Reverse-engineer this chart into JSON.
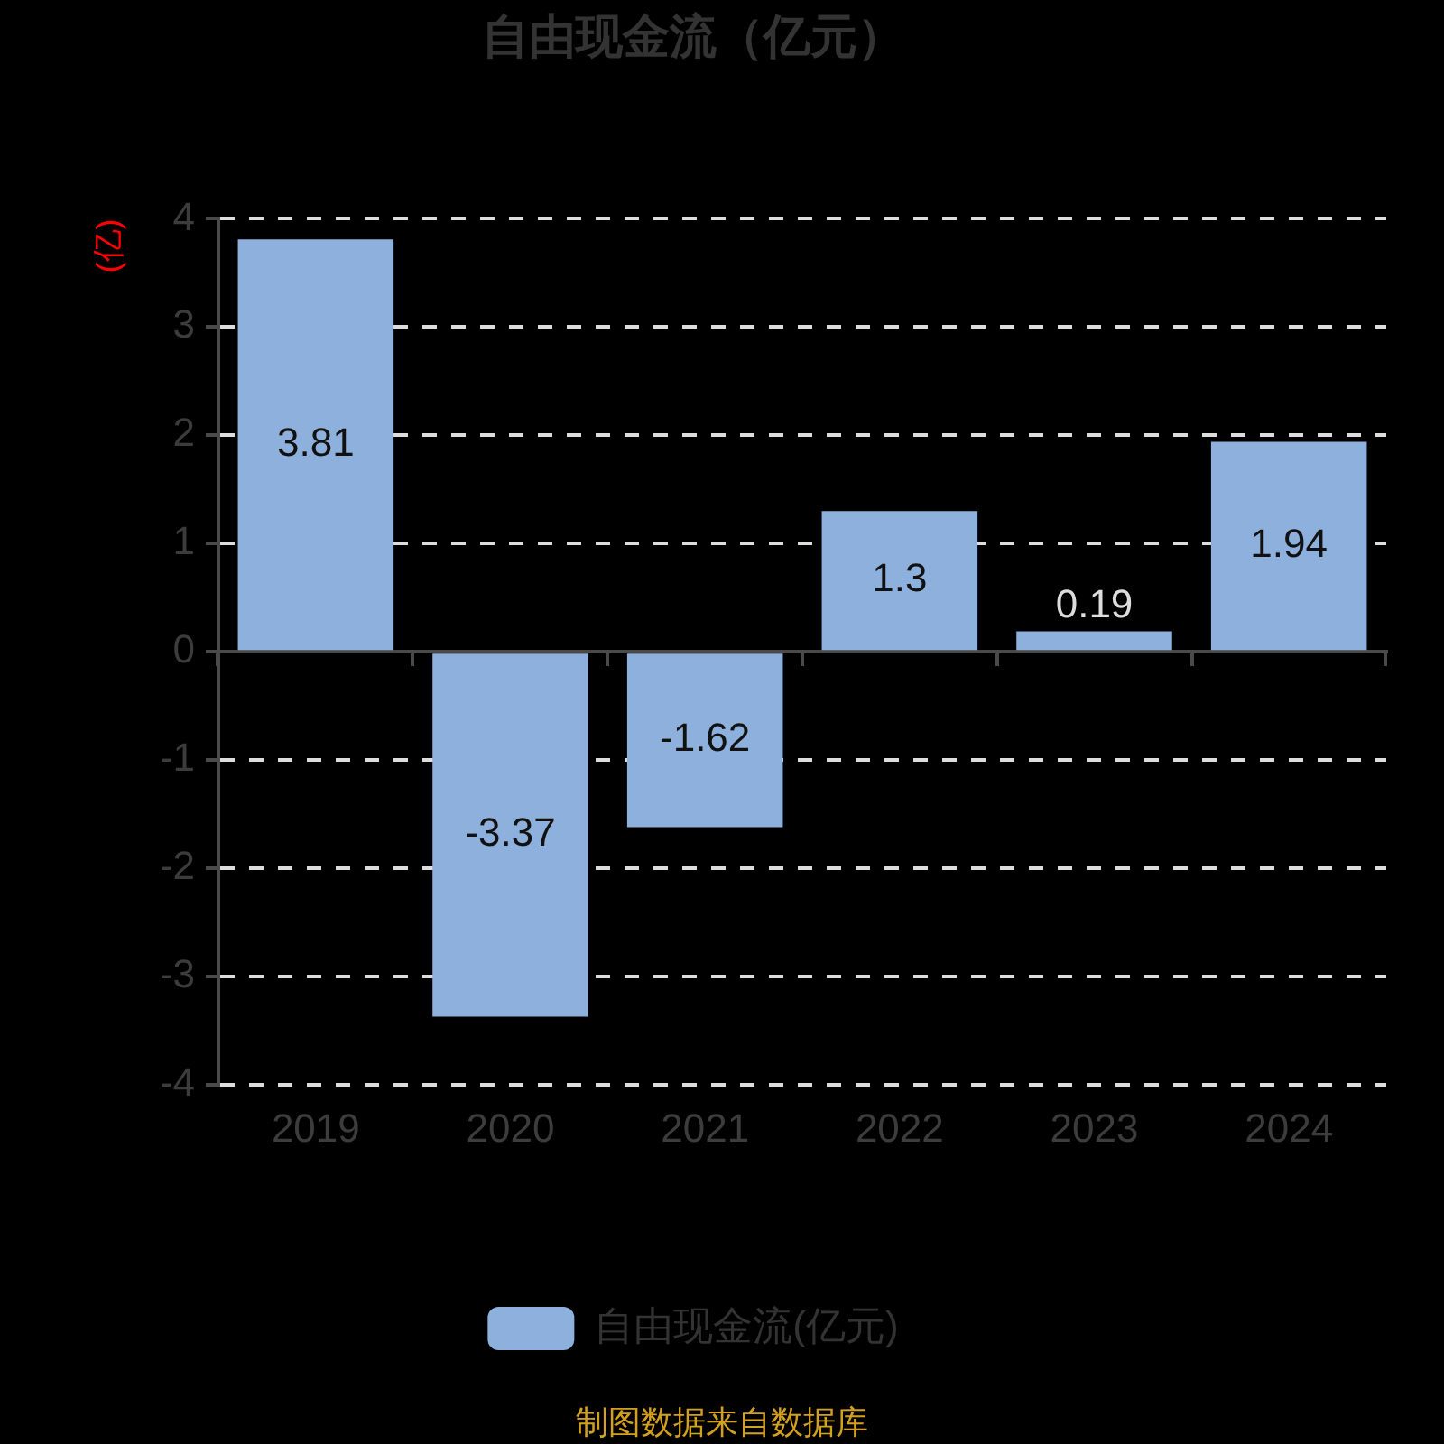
{
  "chart_data": {
    "type": "bar",
    "title": "自由现金流（亿元）",
    "ylabel": "(亿)",
    "categories": [
      "2019",
      "2020",
      "2021",
      "2022",
      "2023",
      "2024"
    ],
    "series": [
      {
        "name": "自由现金流(亿元)",
        "color": "#8eb0dc",
        "values": [
          3.81,
          -3.37,
          -1.62,
          1.3,
          0.19,
          1.94
        ]
      }
    ],
    "ylim": [
      -4,
      4
    ],
    "yticks": [
      -4,
      -3,
      -2,
      -1,
      0,
      1,
      2,
      3,
      4
    ],
    "grid": "y",
    "legend": "bottom",
    "data_labels": true,
    "annotations": [
      "制图数据来自数据库"
    ]
  }
}
